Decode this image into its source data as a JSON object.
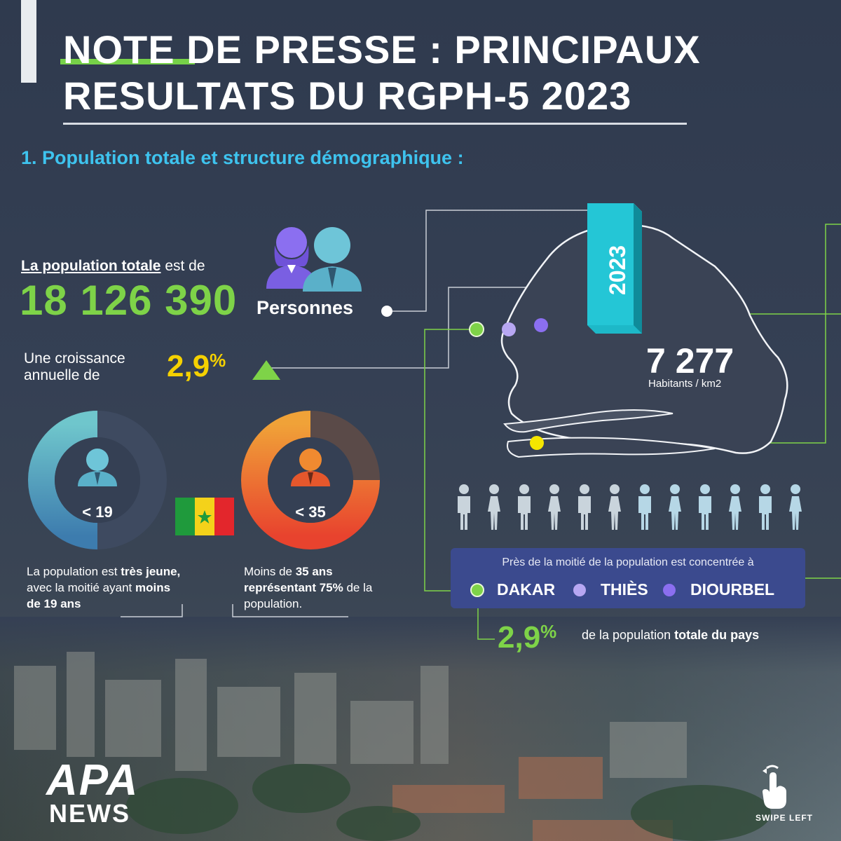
{
  "header": {
    "title_line1": "NOTE DE PRESSE : PRINCIPAUX",
    "title_line2": "RESULTATS DU RGPH-5 2023"
  },
  "section": {
    "heading": "1. Population totale et structure démographique :"
  },
  "population": {
    "label_strong": "La population totale",
    "label_rest": " est de",
    "value": "18 126 390",
    "unit": "Personnes"
  },
  "growth": {
    "label": "Une croissance annuelle de",
    "value": "2,9",
    "percent": "%"
  },
  "year_badge": "2023",
  "density": {
    "value": "7 277",
    "unit": "Habitants / km2"
  },
  "youth": {
    "under19": {
      "label": "< 19",
      "fill_fraction": 0.5,
      "note_1": "La population est ",
      "note_b1": "très jeune,",
      "note_2": " avec la moitié ayant ",
      "note_b2": "moins de 19 ans"
    },
    "under35": {
      "label": "< 35",
      "fill_fraction": 0.75,
      "note_1": "Moins de ",
      "note_b1": "35 ans représentant 75%",
      "note_2": " de la population."
    }
  },
  "concentration": {
    "title": "Près de la moitié de la population est concentrée à",
    "cities": [
      "DAKAR",
      "THIÈS",
      "DIOURBEL"
    ]
  },
  "share": {
    "value": "2,9",
    "percent": "%",
    "text_1": "de la population ",
    "text_b": "totale du pays"
  },
  "branding": {
    "logo_top": "APA",
    "logo_bottom": "NEWS",
    "swipe": "SWIPE LEFT"
  },
  "colors": {
    "green": "#7ed348",
    "yellow": "#f5d100",
    "cyan": "#3ec3ee",
    "lavender": "#b7a7f2",
    "violet": "#8b6ff0",
    "box_blue": "#3b4a8e"
  }
}
